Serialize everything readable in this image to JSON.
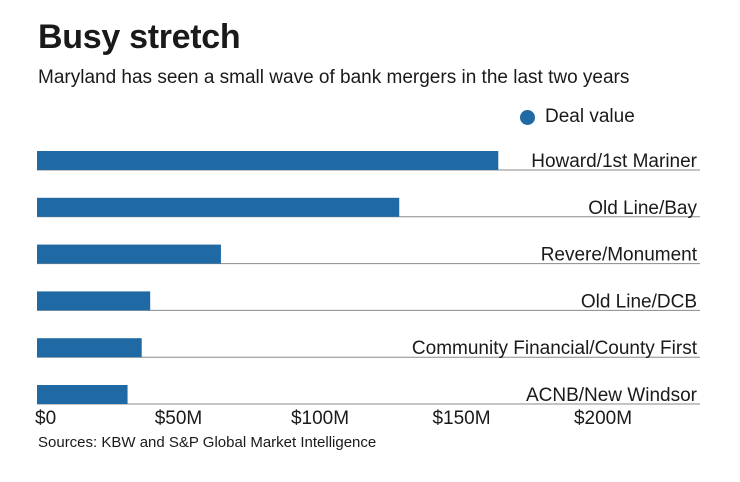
{
  "header": {
    "title": "Busy stretch",
    "subtitle": "Maryland has seen a small wave of bank mergers in the last two years"
  },
  "footer": {
    "source": "Sources: KBW and S&P Global Market Intelligence"
  },
  "colors": {
    "bar": "#1f6aa5",
    "rule": "#8a8a8a",
    "text": "#1a1a1a"
  },
  "chart_data": {
    "type": "bar",
    "orientation": "horizontal",
    "title": "Busy stretch",
    "subtitle": "Maryland has seen a small wave of bank mergers in the last two years",
    "categories": [
      "Howard/1st Mariner",
      "Old Line/Bay",
      "Revere/Monument",
      "Old Line/DCB",
      "Community Financial/County First",
      "ACNB/New Windsor"
    ],
    "series": [
      {
        "name": "Deal value",
        "values": [
          163,
          128,
          65,
          40,
          37,
          32
        ]
      }
    ],
    "xlim": [
      0,
      235
    ],
    "xticks": [
      0,
      50,
      100,
      150,
      200
    ],
    "xtick_labels": [
      "$0",
      "$50M",
      "$100M",
      "$150M",
      "$200M"
    ],
    "xlabel": "",
    "ylabel": "",
    "legend_position": "top-right",
    "grid": false
  }
}
